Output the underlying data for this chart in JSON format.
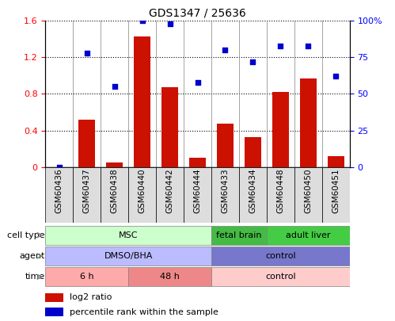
{
  "title": "GDS1347 / 25636",
  "samples": [
    "GSM60436",
    "GSM60437",
    "GSM60438",
    "GSM60440",
    "GSM60442",
    "GSM60444",
    "GSM60433",
    "GSM60434",
    "GSM60448",
    "GSM60450",
    "GSM60451"
  ],
  "log2_ratio": [
    0.0,
    0.52,
    0.05,
    1.43,
    0.87,
    0.1,
    0.47,
    0.33,
    0.82,
    0.97,
    0.12
  ],
  "percentile_rank": [
    0.0,
    78.0,
    55.0,
    100.0,
    98.0,
    58.0,
    80.0,
    72.0,
    83.0,
    83.0,
    62.0
  ],
  "cell_type_groups": [
    {
      "label": "MSC",
      "start": 0,
      "end": 6,
      "color": "#ccffcc"
    },
    {
      "label": "fetal brain",
      "start": 6,
      "end": 8,
      "color": "#44bb44"
    },
    {
      "label": "adult liver",
      "start": 8,
      "end": 11,
      "color": "#44cc44"
    }
  ],
  "agent_groups": [
    {
      "label": "DMSO/BHA",
      "start": 0,
      "end": 6,
      "color": "#bbbbff"
    },
    {
      "label": "control",
      "start": 6,
      "end": 11,
      "color": "#7777cc"
    }
  ],
  "time_groups": [
    {
      "label": "6 h",
      "start": 0,
      "end": 3,
      "color": "#ffaaaa"
    },
    {
      "label": "48 h",
      "start": 3,
      "end": 6,
      "color": "#ee8888"
    },
    {
      "label": "control",
      "start": 6,
      "end": 11,
      "color": "#ffcccc"
    }
  ],
  "bar_color": "#cc1100",
  "scatter_color": "#0000cc",
  "ylim_left": [
    0,
    1.6
  ],
  "ylim_right": [
    0,
    100
  ],
  "yticks_left": [
    0,
    0.4,
    0.8,
    1.2,
    1.6
  ],
  "ytick_labels_left": [
    "0",
    "0.4",
    "0.8",
    "1.2",
    "1.6"
  ],
  "yticks_right": [
    0,
    25,
    50,
    75,
    100
  ],
  "ytick_labels_right": [
    "0",
    "25",
    "50",
    "75",
    "100%"
  ],
  "row_labels": [
    "cell type",
    "agent",
    "time"
  ],
  "legend_items": [
    {
      "color": "#cc1100",
      "label": "log2 ratio"
    },
    {
      "color": "#0000cc",
      "label": "percentile rank within the sample"
    }
  ],
  "background_color": "#ffffff",
  "xticklabel_bg": "#dddddd"
}
